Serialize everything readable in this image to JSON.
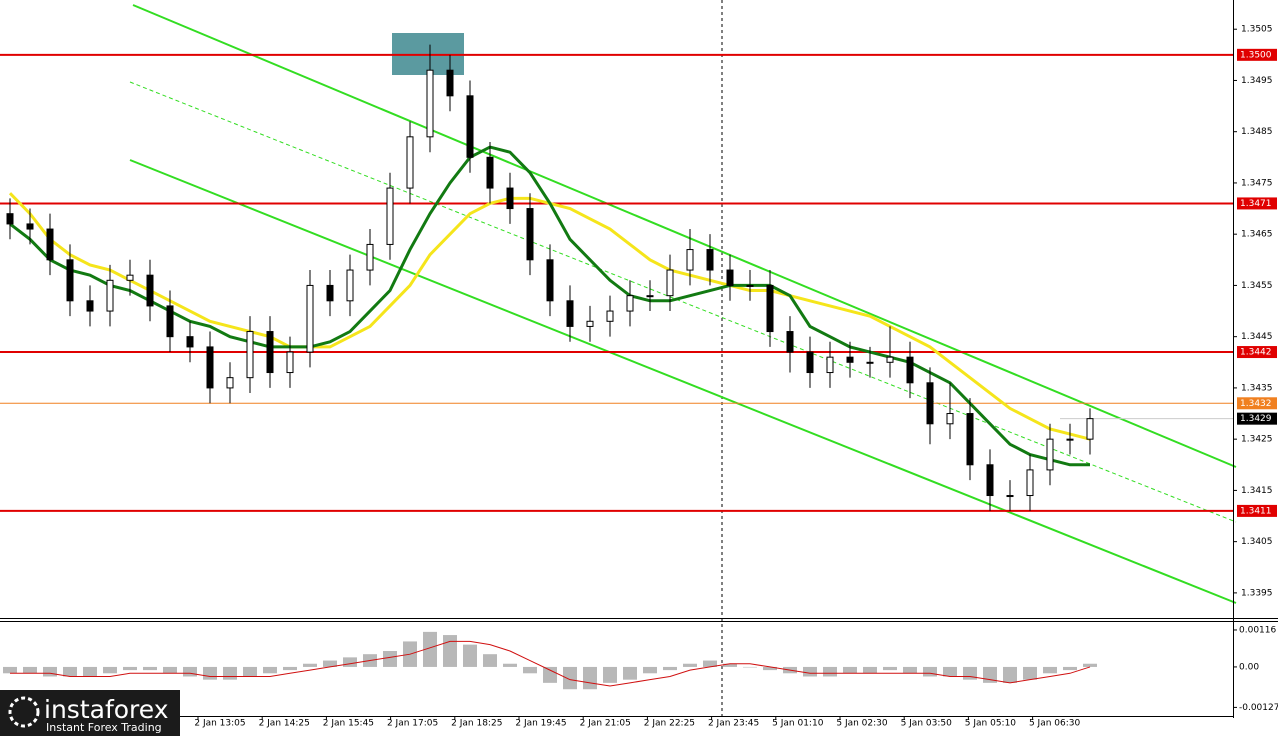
{
  "chart_data": {
    "type": "candlestick",
    "xlabels": [
      "2 Jan 13:05",
      "2 Jan 14:25",
      "2 Jan 15:45",
      "2 Jan 17:05",
      "2 Jan 18:25",
      "2 Jan 19:45",
      "2 Jan 21:05",
      "2 Jan 22:25",
      "2 Jan 23:45",
      "5 Jan 01:10",
      "5 Jan 02:30",
      "5 Jan 03:50",
      "5 Jan 05:10",
      "5 Jan 06:30"
    ],
    "open": [
      1.3469,
      1.3467,
      1.3466,
      1.346,
      1.3452,
      1.345,
      1.3456,
      1.3457,
      1.3451,
      1.3445,
      1.3443,
      1.3435,
      1.3437,
      1.3446,
      1.3438,
      1.3442,
      1.3455,
      1.3452,
      1.3458,
      1.3463,
      1.3474,
      1.3484,
      1.3497,
      1.3492,
      1.348,
      1.3474,
      1.347,
      1.346,
      1.3452,
      1.3447,
      1.3448,
      1.345,
      1.3453,
      1.3453,
      1.3458,
      1.3462,
      1.3458,
      1.3455,
      1.3455,
      1.3446,
      1.3442,
      1.3438,
      1.3441,
      1.344,
      1.344,
      1.3441,
      1.3436,
      1.3428,
      1.343,
      1.342,
      1.3414,
      1.3414,
      1.3419,
      1.3425,
      1.3425
    ],
    "high": [
      1.3472,
      1.347,
      1.3469,
      1.3463,
      1.3455,
      1.3459,
      1.346,
      1.346,
      1.3454,
      1.3448,
      1.3446,
      1.344,
      1.3449,
      1.3449,
      1.3445,
      1.3458,
      1.3458,
      1.3461,
      1.3466,
      1.3477,
      1.3487,
      1.3502,
      1.35,
      1.3495,
      1.3483,
      1.3477,
      1.3473,
      1.3463,
      1.3455,
      1.3451,
      1.3453,
      1.3456,
      1.3456,
      1.3461,
      1.3466,
      1.3465,
      1.3461,
      1.3458,
      1.3458,
      1.3449,
      1.3445,
      1.3444,
      1.3444,
      1.3443,
      1.3447,
      1.3444,
      1.3439,
      1.3436,
      1.3433,
      1.3423,
      1.3417,
      1.3422,
      1.3428,
      1.3428,
      1.3431
    ],
    "low": [
      1.3464,
      1.3463,
      1.3457,
      1.3449,
      1.3447,
      1.3447,
      1.3453,
      1.3448,
      1.3442,
      1.344,
      1.3432,
      1.3432,
      1.3434,
      1.3435,
      1.3435,
      1.3439,
      1.3449,
      1.3449,
      1.3455,
      1.346,
      1.3471,
      1.3481,
      1.3489,
      1.3477,
      1.3471,
      1.3467,
      1.3457,
      1.3449,
      1.3444,
      1.3444,
      1.3445,
      1.3447,
      1.345,
      1.345,
      1.3455,
      1.3455,
      1.3452,
      1.3452,
      1.3443,
      1.3438,
      1.3435,
      1.3435,
      1.3437,
      1.3437,
      1.3437,
      1.3433,
      1.3424,
      1.3425,
      1.3417,
      1.3411,
      1.3411,
      1.3411,
      1.3416,
      1.3422,
      1.3422
    ],
    "close": [
      1.3467,
      1.3466,
      1.346,
      1.3452,
      1.345,
      1.3456,
      1.3457,
      1.3451,
      1.3445,
      1.3443,
      1.3435,
      1.3437,
      1.3446,
      1.3438,
      1.3442,
      1.3455,
      1.3452,
      1.3458,
      1.3463,
      1.3474,
      1.3484,
      1.3497,
      1.3492,
      1.348,
      1.3474,
      1.347,
      1.346,
      1.3452,
      1.3447,
      1.3448,
      1.345,
      1.3453,
      1.3453,
      1.3458,
      1.3462,
      1.3458,
      1.3455,
      1.3455,
      1.3446,
      1.3442,
      1.3438,
      1.3441,
      1.344,
      1.344,
      1.3441,
      1.3436,
      1.3428,
      1.343,
      1.342,
      1.3414,
      1.3414,
      1.3419,
      1.3425,
      1.3425,
      1.3429
    ],
    "up_color": "#ffffff",
    "down_color": "#000000",
    "ma_slow": {
      "color": "#f5e51b",
      "values": [
        1.3473,
        1.3469,
        1.3464,
        1.3461,
        1.3459,
        1.3458,
        1.3456,
        1.3454,
        1.3452,
        1.345,
        1.3448,
        1.3447,
        1.3446,
        1.3445,
        1.3443,
        1.3443,
        1.3443,
        1.3445,
        1.3447,
        1.3451,
        1.3455,
        1.3461,
        1.3465,
        1.3469,
        1.3471,
        1.3472,
        1.3472,
        1.3471,
        1.347,
        1.3468,
        1.3466,
        1.3463,
        1.346,
        1.3458,
        1.3457,
        1.3456,
        1.3455,
        1.3454,
        1.3454,
        1.3453,
        1.3452,
        1.3451,
        1.345,
        1.3449,
        1.3447,
        1.3445,
        1.3443,
        1.344,
        1.3437,
        1.3434,
        1.3431,
        1.3429,
        1.3427,
        1.3426,
        1.3425
      ]
    },
    "ma_fast": {
      "color": "#127a12",
      "values": [
        1.3467,
        1.3464,
        1.346,
        1.3458,
        1.3457,
        1.3455,
        1.3454,
        1.3452,
        1.345,
        1.3448,
        1.3447,
        1.3445,
        1.3444,
        1.3443,
        1.3443,
        1.3443,
        1.3444,
        1.3446,
        1.345,
        1.3454,
        1.3462,
        1.3469,
        1.3475,
        1.348,
        1.3482,
        1.3481,
        1.3477,
        1.3471,
        1.3464,
        1.346,
        1.3456,
        1.3453,
        1.3452,
        1.3452,
        1.3453,
        1.3454,
        1.3455,
        1.3455,
        1.3455,
        1.3453,
        1.3447,
        1.3445,
        1.3443,
        1.3442,
        1.3441,
        1.344,
        1.3438,
        1.3436,
        1.3432,
        1.3428,
        1.3424,
        1.3422,
        1.3421,
        1.342,
        1.342
      ]
    },
    "ylim": [
      1.33901,
      1.35107
    ],
    "yticks": [
      1.3505,
      1.3495,
      1.3485,
      1.3475,
      1.3465,
      1.3455,
      1.3445,
      1.3435,
      1.3425,
      1.3415,
      1.3405,
      1.3395
    ],
    "levels": [
      {
        "value": 1.35,
        "label": "1.3500",
        "color": "#e00000"
      },
      {
        "value": 1.3471,
        "color": "#e00000"
      },
      {
        "value": 1.3442,
        "color": "#e00000"
      },
      {
        "value": 1.3432,
        "color": "#f08020"
      },
      {
        "value": 1.3411,
        "color": "#e00000"
      }
    ],
    "current": {
      "value": 1.3429,
      "color": "#000000"
    },
    "macd": {
      "ylim": [
        -0.00154,
        0.00141
      ],
      "yticks": [
        0.00116,
        {
          "value": 0,
          "label": "0.00"
        },
        -0.00127
      ],
      "color": "#b8b8b8",
      "signal_color": "#d01010",
      "histogram": [
        -0.0002,
        -0.0002,
        -0.0003,
        -0.0003,
        -0.0003,
        -0.0002,
        -0.0001,
        -0.0001,
        -0.0002,
        -0.0003,
        -0.0004,
        -0.0004,
        -0.0003,
        -0.0002,
        -0.0001,
        0.0001,
        0.0002,
        0.0003,
        0.0004,
        0.0005,
        0.0008,
        0.0011,
        0.001,
        0.0007,
        0.0004,
        0.0001,
        -0.0002,
        -0.0005,
        -0.0007,
        -0.0007,
        -0.0005,
        -0.0004,
        -0.0002,
        -0.0001,
        0.0001,
        0.0002,
        0.0001,
        0,
        -0.0001,
        -0.0002,
        -0.0003,
        -0.0003,
        -0.0002,
        -0.0002,
        -0.0001,
        -0.0002,
        -0.0003,
        -0.0003,
        -0.0004,
        -0.0005,
        -0.0005,
        -0.0004,
        -0.0002,
        -0.0001,
        0.0001
      ],
      "signal": [
        -0.0002,
        -0.0002,
        -0.0002,
        -0.0003,
        -0.0003,
        -0.0003,
        -0.0002,
        -0.0002,
        -0.0002,
        -0.0002,
        -0.0003,
        -0.0003,
        -0.0003,
        -0.0003,
        -0.0002,
        -0.0001,
        0,
        0.0001,
        0.0002,
        0.0003,
        0.0004,
        0.0006,
        0.0008,
        0.0008,
        0.0007,
        0.0005,
        0.0002,
        -0.0001,
        -0.0004,
        -0.0005,
        -0.0006,
        -0.0005,
        -0.0004,
        -0.0003,
        -0.0001,
        0,
        0.0001,
        0.0001,
        0,
        -0.0001,
        -0.0002,
        -0.0002,
        -0.0002,
        -0.0002,
        -0.0002,
        -0.0002,
        -0.0002,
        -0.0003,
        -0.0003,
        -0.0004,
        -0.0005,
        -0.0004,
        -0.0003,
        -0.0002,
        0
      ]
    },
    "brand": {
      "name": "instaforex",
      "tagline": "Instant Forex Trading"
    }
  }
}
